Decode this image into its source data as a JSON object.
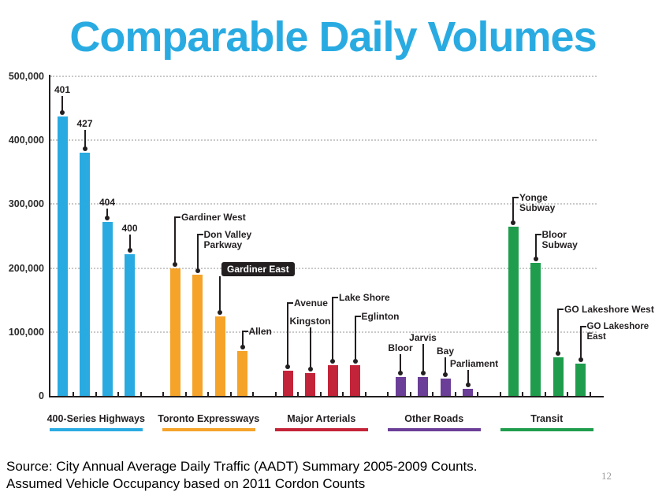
{
  "title": "Comparable Daily Volumes",
  "page_number": "12",
  "footer": {
    "line1": "Source: City Annual Average Daily Traffic (AADT) Summary 2005-2009 Counts.",
    "line2": "Assumed Vehicle Occupancy based on 2011 Cordon Counts"
  },
  "colors": {
    "title": "#29ABE2",
    "blue": "#29ABE2",
    "orange": "#F5A329",
    "red": "#C42439",
    "purple": "#6B3E98",
    "green": "#1F9D4D",
    "axis": "#231F20",
    "grid": "#C9C9C9",
    "badge_bg": "#231F20",
    "badge_text": "#FFFFFF",
    "page_number": "#9B9B9B"
  },
  "chart_data": {
    "type": "bar",
    "title": "Comparable Daily Volumes",
    "xlabel": "",
    "ylabel": "",
    "ylim": [
      0,
      500000
    ],
    "ytick_step": 100000,
    "ytick_labels": [
      "0",
      "100,000",
      "200,000",
      "300,000",
      "400,000",
      "500,000"
    ],
    "grid": "horizontal-dotted",
    "legend": "category labels with colored underlines below x-axis",
    "groups": [
      {
        "category": "400-Series Highways",
        "color_key": "blue",
        "bars": [
          {
            "label": "401",
            "value": 437000
          },
          {
            "label": "427",
            "value": 380000
          },
          {
            "label": "404",
            "value": 272000
          },
          {
            "label": "400",
            "value": 222000
          }
        ]
      },
      {
        "category": "Toronto Expressways",
        "color_key": "orange",
        "bars": [
          {
            "label": "Gardiner West",
            "value": 200000
          },
          {
            "label": "Don Valley Parkway",
            "value": 190000
          },
          {
            "label": "Gardiner East",
            "value": 125000,
            "highlighted": true
          },
          {
            "label": "Allen",
            "value": 70000
          }
        ]
      },
      {
        "category": "Major Arterials",
        "color_key": "red",
        "bars": [
          {
            "label": "Avenue",
            "value": 40000
          },
          {
            "label": "Kingston",
            "value": 36000
          },
          {
            "label": "Lake Shore",
            "value": 48000
          },
          {
            "label": "Eglinton",
            "value": 48000
          }
        ]
      },
      {
        "category": "Other Roads",
        "color_key": "purple",
        "bars": [
          {
            "label": "Bloor",
            "value": 30000
          },
          {
            "label": "Jarvis",
            "value": 30000
          },
          {
            "label": "Bay",
            "value": 27000
          },
          {
            "label": "Parliament",
            "value": 11000
          }
        ]
      },
      {
        "category": "Transit",
        "color_key": "green",
        "bars": [
          {
            "label": "Yonge Subway",
            "value": 265000
          },
          {
            "label": "Bloor Subway",
            "value": 208000
          },
          {
            "label": "GO Lakeshore West",
            "value": 60000
          },
          {
            "label": "GO Lakeshore East",
            "value": 50000
          }
        ]
      }
    ]
  }
}
